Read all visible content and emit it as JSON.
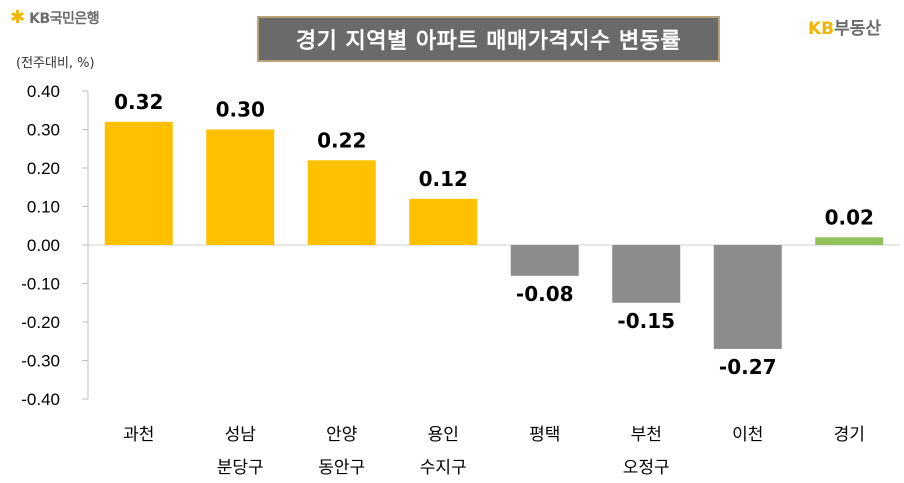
{
  "header": {
    "brand_left": "KB국민은행",
    "title": "경기 지역별 아파트 매매가격지수 변동률",
    "brand_right_kb": "KB",
    "brand_right_rest": "부동산",
    "unit_note": "(전주대비, %)"
  },
  "colors": {
    "positive": "#ffc000",
    "negative": "#8c8c8c",
    "total": "#92c05a",
    "title_bg": "#6a6a6a"
  },
  "chart_data": {
    "type": "bar",
    "title": "경기 지역별 아파트 매매가격지수 변동률",
    "ylabel": "(전주대비, %)",
    "ylim": [
      -0.4,
      0.4
    ],
    "yticks": [
      "0.40",
      "0.30",
      "0.20",
      "0.10",
      "0.00",
      "-0.10",
      "-0.20",
      "-0.30",
      "-0.40"
    ],
    "grid": false,
    "categories": [
      {
        "line1": "과천",
        "line2": ""
      },
      {
        "line1": "성남",
        "line2": "분당구"
      },
      {
        "line1": "안양",
        "line2": "동안구"
      },
      {
        "line1": "용인",
        "line2": "수지구"
      },
      {
        "line1": "평택",
        "line2": ""
      },
      {
        "line1": "부천",
        "line2": "오정구"
      },
      {
        "line1": "이천",
        "line2": ""
      },
      {
        "line1": "경기",
        "line2": ""
      }
    ],
    "values": [
      0.32,
      0.3,
      0.22,
      0.12,
      -0.08,
      -0.15,
      -0.27,
      0.02
    ],
    "labels": [
      "0.32",
      "0.30",
      "0.22",
      "0.12",
      "-0.08",
      "-0.15",
      "-0.27",
      "0.02"
    ]
  }
}
